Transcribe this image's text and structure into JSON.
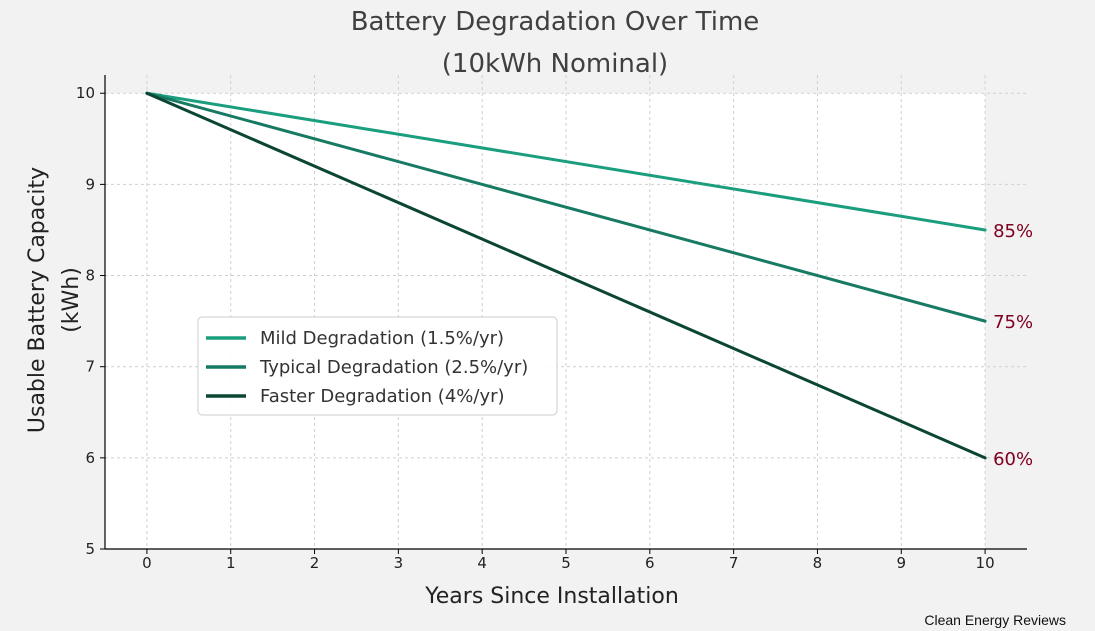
{
  "chart_data": {
    "type": "line",
    "title": [
      "Battery Degradation Over Time",
      "(10kWh Nominal)"
    ],
    "xlabel": "Years Since Installation",
    "ylabel": [
      "Usable Battery Capacity",
      "(kWh)"
    ],
    "x": [
      0,
      10
    ],
    "xlim": [
      -0.5,
      10.5
    ],
    "ylim": [
      5,
      10.2
    ],
    "xticks": [
      0,
      1,
      2,
      3,
      4,
      5,
      6,
      7,
      8,
      9,
      10
    ],
    "yticks": [
      5,
      6,
      7,
      8,
      9,
      10
    ],
    "grid": true,
    "legend_position": "center-left",
    "series": [
      {
        "name": "Mild Degradation (1.5%/yr)",
        "values": [
          10,
          8.5
        ],
        "color": "#1a9e7e",
        "end_label": "85%"
      },
      {
        "name": "Typical Degradation (2.5%/yr)",
        "values": [
          10,
          7.5
        ],
        "color": "#177a62",
        "end_label": "75%"
      },
      {
        "name": "Faster Degradation (4%/yr)",
        "values": [
          10,
          6.0
        ],
        "color": "#0b4534",
        "end_label": "60%"
      }
    ],
    "end_label_color": "#800020"
  },
  "source": "Clean Energy Reviews"
}
